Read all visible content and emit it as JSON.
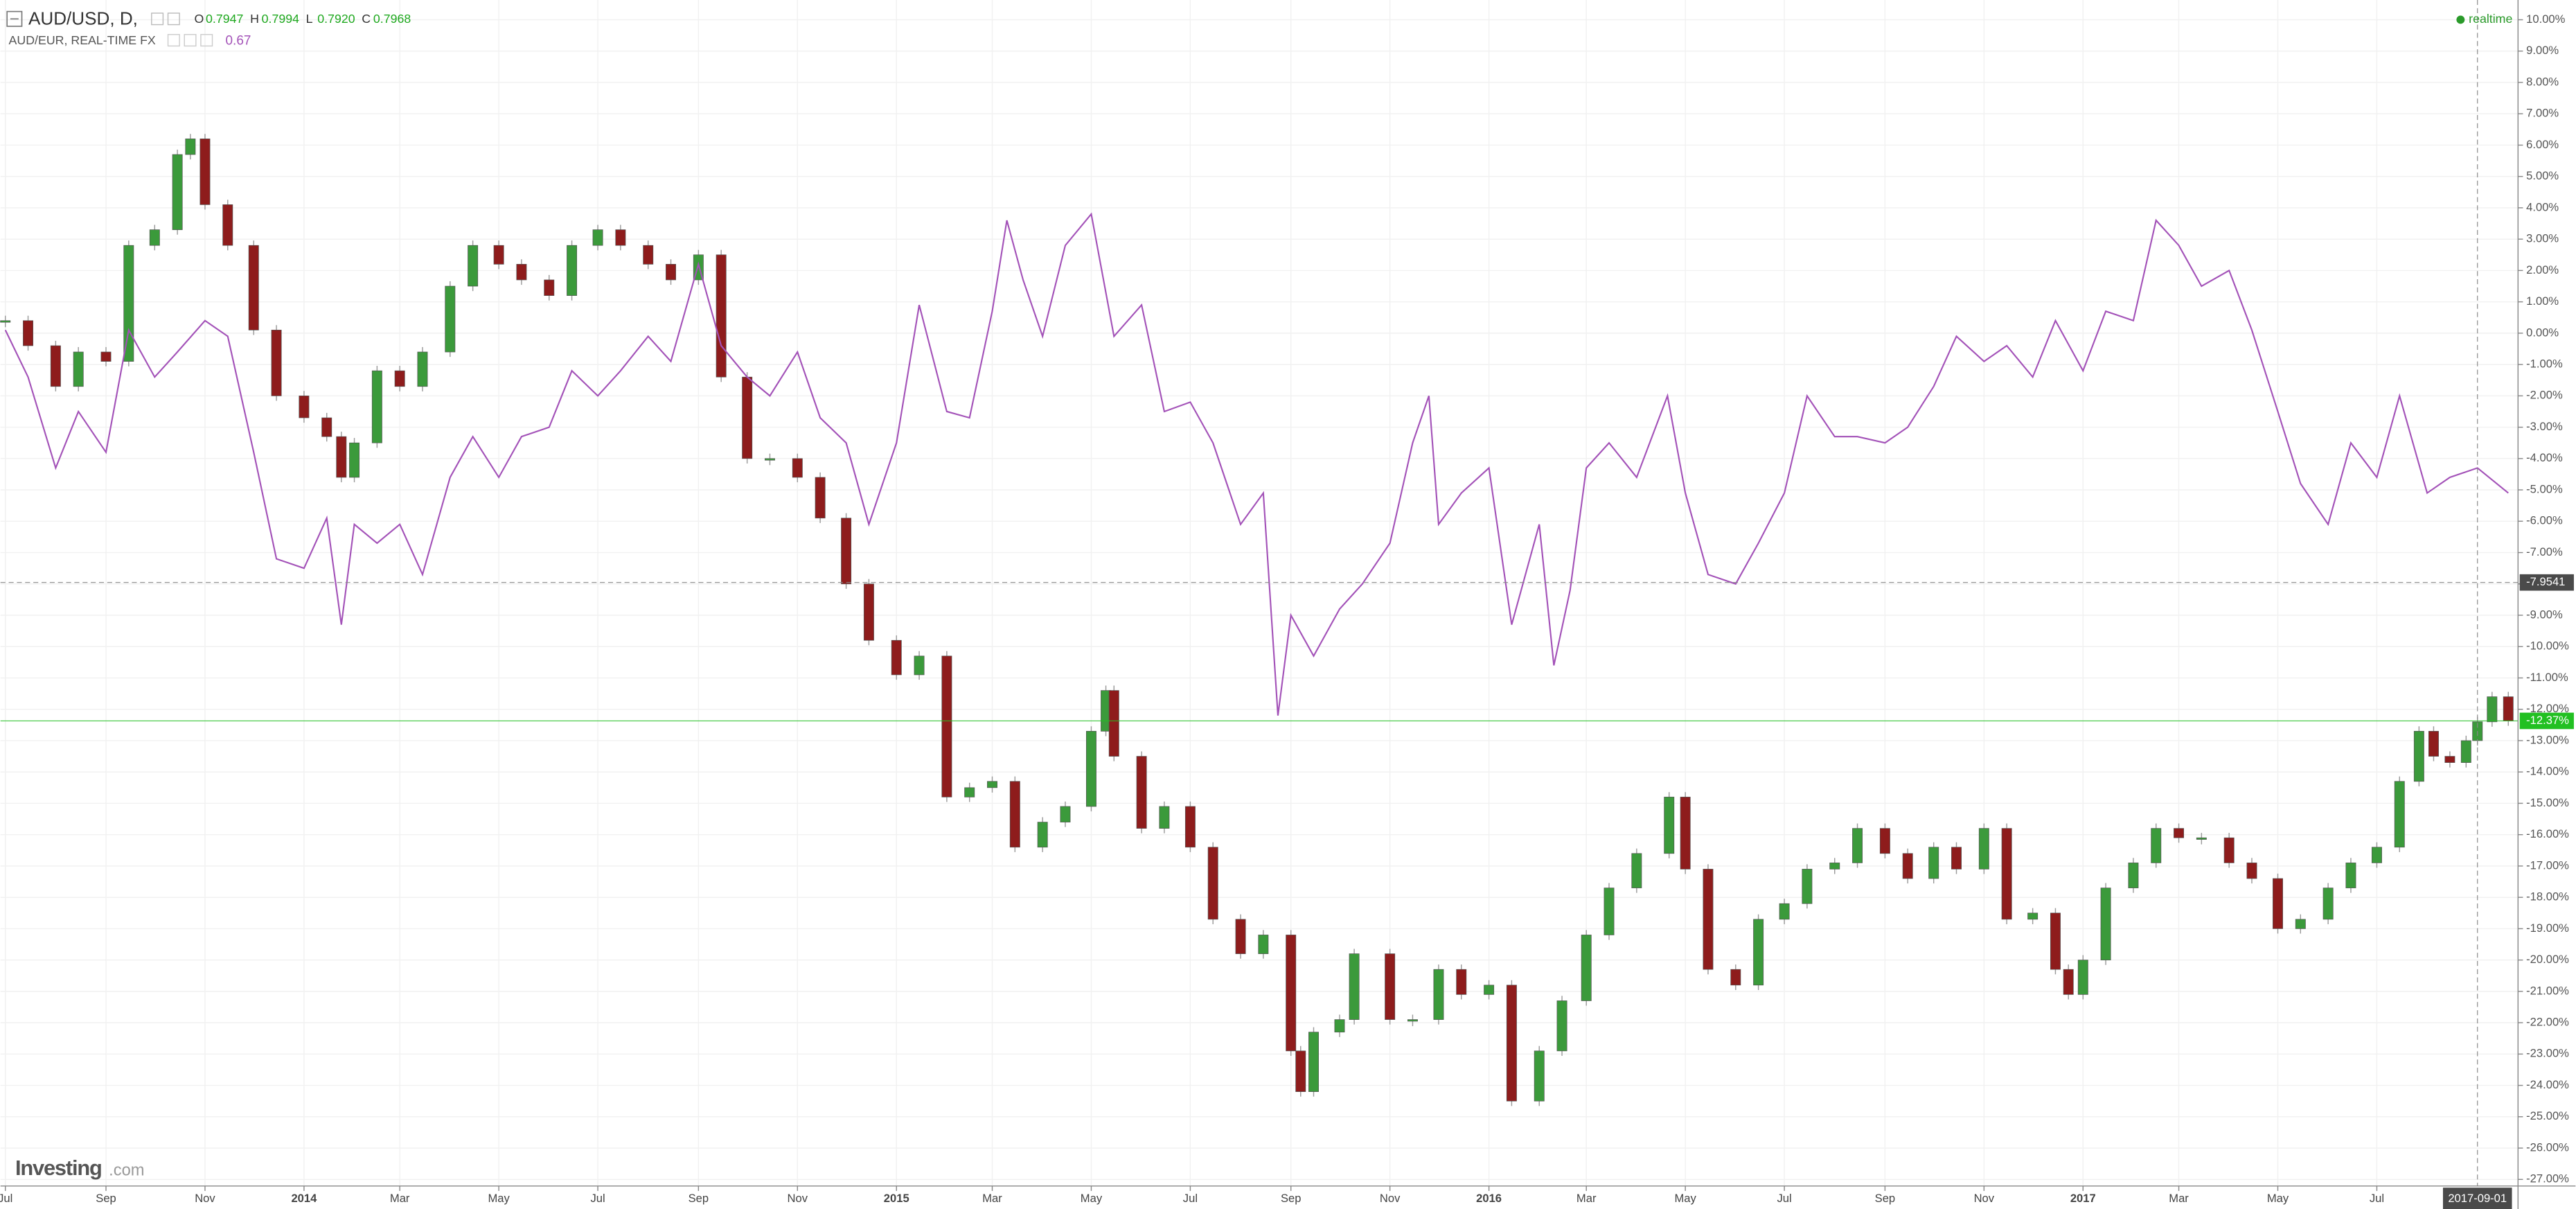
{
  "chart_data": {
    "type": "candlestick",
    "header": {
      "symbol": "AUD/USD, D,",
      "ohlc": [
        {
          "key": "O",
          "value": 0.7947
        },
        {
          "key": "H",
          "value": 0.7994
        },
        {
          "key": "L",
          "value": {
            "value": 0.792,
            "label": "0.7920"
          }
        },
        {
          "key": "C",
          "value": 0.7968
        }
      ],
      "compare_symbol": "AUD/EUR, REAL-TIME FX",
      "compare_value": 0.67,
      "status": "realtime",
      "logo": "Investing",
      "logo_suffix": ".com"
    },
    "series": [
      {
        "name": "AUD/USD",
        "type": "candlestick",
        "up_color": "#3b9a3b",
        "down_color": "#8e1c1c",
        "x": [
          "2013-07-01",
          "2013-07-15",
          "2013-08-01",
          "2013-08-15",
          "2013-09-01",
          "2013-09-15",
          "2013-10-01",
          "2013-10-15",
          "2013-10-23",
          "2013-11-01",
          "2013-11-15",
          "2013-12-01",
          "2013-12-15",
          "2014-01-01",
          "2014-01-15",
          "2014-01-24",
          "2014-02-01",
          "2014-02-15",
          "2014-03-01",
          "2014-03-15",
          "2014-04-01",
          "2014-04-15",
          "2014-05-01",
          "2014-05-15",
          "2014-06-01",
          "2014-06-15",
          "2014-07-01",
          "2014-07-15",
          "2014-08-01",
          "2014-08-15",
          "2014-09-01",
          "2014-09-15",
          "2014-10-01",
          "2014-10-15",
          "2014-11-01",
          "2014-11-15",
          "2014-12-01",
          "2014-12-15",
          "2015-01-01",
          "2015-01-15",
          "2015-02-01",
          "2015-02-15",
          "2015-03-01",
          "2015-03-15",
          "2015-04-01",
          "2015-04-15",
          "2015-05-01",
          "2015-05-10",
          "2015-05-15",
          "2015-06-01",
          "2015-06-15",
          "2015-07-01",
          "2015-07-15",
          "2015-08-01",
          "2015-08-15",
          "2015-09-01",
          "2015-09-07",
          "2015-09-15",
          "2015-10-01",
          "2015-10-10",
          "2015-11-01",
          "2015-11-15",
          "2015-12-01",
          "2015-12-15",
          "2016-01-01",
          "2016-01-15",
          "2016-02-01",
          "2016-02-15",
          "2016-03-01",
          "2016-03-15",
          "2016-04-01",
          "2016-04-21",
          "2016-05-01",
          "2016-05-15",
          "2016-06-01",
          "2016-06-15",
          "2016-07-01",
          "2016-07-15",
          "2016-08-01",
          "2016-08-15",
          "2016-09-01",
          "2016-09-15",
          "2016-10-01",
          "2016-10-15",
          "2016-11-01",
          "2016-11-15",
          "2016-12-01",
          "2016-12-15",
          "2016-12-23",
          "2017-01-01",
          "2017-01-15",
          "2017-02-01",
          "2017-02-15",
          "2017-03-01",
          "2017-03-15",
          "2017-04-01",
          "2017-04-15",
          "2017-05-01",
          "2017-05-15",
          "2017-06-01",
          "2017-06-15",
          "2017-07-01",
          "2017-07-15",
          "2017-07-27",
          "2017-08-05",
          "2017-08-15",
          "2017-08-25",
          "2017-09-01",
          "2017-09-10",
          "2017-09-20"
        ],
        "values": [
          0.4,
          -0.4,
          -1.7,
          -0.6,
          -0.9,
          2.8,
          3.3,
          5.7,
          6.2,
          4.1,
          2.8,
          0.1,
          -2.0,
          -2.7,
          -3.3,
          -4.6,
          -3.5,
          -1.2,
          -1.7,
          -0.6,
          1.5,
          2.8,
          2.2,
          1.7,
          1.2,
          2.8,
          3.3,
          2.8,
          2.2,
          1.7,
          2.5,
          -1.4,
          -4.0,
          -4.0,
          -4.6,
          -5.9,
          -8.0,
          -9.8,
          -10.9,
          -10.3,
          -14.8,
          -14.5,
          -14.3,
          -16.4,
          -15.6,
          -15.1,
          -12.7,
          -11.4,
          -13.5,
          -15.8,
          -15.1,
          -16.4,
          -18.7,
          -19.8,
          -19.2,
          -22.9,
          -24.2,
          -22.3,
          -21.9,
          -19.8,
          -21.9,
          -21.9,
          -20.3,
          -21.1,
          -20.8,
          -24.5,
          -22.9,
          -21.3,
          -19.2,
          -17.7,
          -16.6,
          -14.8,
          -17.1,
          -20.3,
          -20.8,
          -18.7,
          -18.2,
          -17.1,
          -16.9,
          -15.8,
          -16.6,
          -17.4,
          -16.4,
          -17.1,
          -15.8,
          -18.7,
          -18.5,
          -20.3,
          -21.1,
          -20.0,
          -17.7,
          -16.9,
          -15.8,
          -16.1,
          -16.1,
          -16.9,
          -17.4,
          -19.0,
          -18.7,
          -17.7,
          -16.9,
          -16.4,
          -14.3,
          -12.7,
          -13.5,
          -13.7,
          -13.0,
          -12.4,
          -11.6,
          -12.37
        ]
      },
      {
        "name": "AUD/EUR",
        "type": "line",
        "color": "#a352b8",
        "x": [
          "2013-07-01",
          "2013-07-15",
          "2013-08-01",
          "2013-08-15",
          "2013-09-01",
          "2013-09-15",
          "2013-10-01",
          "2013-10-15",
          "2013-11-01",
          "2013-11-15",
          "2013-12-01",
          "2013-12-15",
          "2014-01-01",
          "2014-01-15",
          "2014-01-24",
          "2014-02-01",
          "2014-02-15",
          "2014-03-01",
          "2014-03-15",
          "2014-04-01",
          "2014-04-15",
          "2014-05-01",
          "2014-05-15",
          "2014-06-01",
          "2014-06-15",
          "2014-07-01",
          "2014-07-15",
          "2014-08-01",
          "2014-08-15",
          "2014-09-01",
          "2014-09-15",
          "2014-10-01",
          "2014-10-15",
          "2014-11-01",
          "2014-11-15",
          "2014-12-01",
          "2014-12-15",
          "2015-01-01",
          "2015-01-15",
          "2015-02-01",
          "2015-02-15",
          "2015-03-01",
          "2015-03-10",
          "2015-03-20",
          "2015-04-01",
          "2015-04-15",
          "2015-05-01",
          "2015-05-15",
          "2015-06-01",
          "2015-06-15",
          "2015-07-01",
          "2015-07-15",
          "2015-08-01",
          "2015-08-15",
          "2015-08-24",
          "2015-09-01",
          "2015-09-15",
          "2015-10-01",
          "2015-10-15",
          "2015-11-01",
          "2015-11-15",
          "2015-11-25",
          "2015-12-01",
          "2015-12-15",
          "2016-01-01",
          "2016-01-15",
          "2016-02-01",
          "2016-02-10",
          "2016-02-20",
          "2016-03-01",
          "2016-03-15",
          "2016-04-01",
          "2016-04-20",
          "2016-05-01",
          "2016-05-15",
          "2016-06-01",
          "2016-06-15",
          "2016-07-01",
          "2016-07-15",
          "2016-08-01",
          "2016-08-15",
          "2016-09-01",
          "2016-09-15",
          "2016-10-01",
          "2016-10-15",
          "2016-11-01",
          "2016-11-15",
          "2016-12-01",
          "2016-12-15",
          "2017-01-01",
          "2017-01-15",
          "2017-02-01",
          "2017-02-15",
          "2017-03-01",
          "2017-03-15",
          "2017-04-01",
          "2017-04-15",
          "2017-05-01",
          "2017-05-15",
          "2017-06-01",
          "2017-06-15",
          "2017-07-01",
          "2017-07-15",
          "2017-08-01",
          "2017-08-15",
          "2017-09-01",
          "2017-09-20"
        ],
        "values": [
          0.1,
          -1.4,
          -4.3,
          -2.5,
          -3.8,
          0.1,
          -1.4,
          -0.6,
          0.4,
          -0.1,
          -3.8,
          -7.2,
          -7.5,
          -5.9,
          -9.3,
          -6.1,
          -6.7,
          -6.1,
          -7.7,
          -4.6,
          -3.3,
          -4.6,
          -3.3,
          -3.0,
          -1.2,
          -2.0,
          -1.2,
          -0.1,
          -0.9,
          2.2,
          -0.4,
          -1.4,
          -2.0,
          -0.6,
          -2.7,
          -3.5,
          -6.1,
          -3.5,
          0.9,
          -2.5,
          -2.7,
          0.7,
          3.6,
          1.7,
          -0.1,
          2.8,
          3.8,
          -0.1,
          0.9,
          -2.5,
          -2.2,
          -3.5,
          -6.1,
          -5.1,
          -12.2,
          -9.0,
          -10.3,
          -8.8,
          -8.0,
          -6.7,
          -3.5,
          -2.0,
          -6.1,
          -5.1,
          -4.3,
          -9.3,
          -6.1,
          -10.6,
          -8.2,
          -4.3,
          -3.5,
          -4.6,
          -2.0,
          -5.1,
          -7.7,
          -8.0,
          -6.7,
          -5.1,
          -2.0,
          -3.3,
          -3.3,
          -3.5,
          -3.0,
          -1.7,
          -0.1,
          -0.9,
          -0.4,
          -1.4,
          0.4,
          -1.2,
          0.7,
          0.4,
          3.6,
          2.8,
          1.5,
          2.0,
          0.1,
          -2.5,
          -4.8,
          -6.1,
          -3.5,
          -4.6,
          -2.0,
          -5.1,
          -4.6,
          -4.3,
          -5.1
        ]
      }
    ],
    "last_value": {
      "value": -12.37,
      "label": "-12.37%"
    },
    "last_color": "#22c022",
    "crosshair": {
      "x": "2017-09-01",
      "y": -7.9541
    },
    "xlim": [
      "2013-06-28",
      "2017-09-26"
    ],
    "xticks": [
      {
        "value": "2013-07-01",
        "label": "Jul"
      },
      {
        "value": "2013-09-01",
        "label": "Sep"
      },
      {
        "value": "2013-11-01",
        "label": "Nov"
      },
      {
        "value": "2014-01-01",
        "label": "2014"
      },
      {
        "value": "2014-03-01",
        "label": "Mar"
      },
      {
        "value": "2014-05-01",
        "label": "May"
      },
      {
        "value": "2014-07-01",
        "label": "Jul"
      },
      {
        "value": "2014-09-01",
        "label": "Sep"
      },
      {
        "value": "2014-11-01",
        "label": "Nov"
      },
      {
        "value": "2015-01-01",
        "label": "2015"
      },
      {
        "value": "2015-03-01",
        "label": "Mar"
      },
      {
        "value": "2015-05-01",
        "label": "May"
      },
      {
        "value": "2015-07-01",
        "label": "Jul"
      },
      {
        "value": "2015-09-01",
        "label": "Sep"
      },
      {
        "value": "2015-11-01",
        "label": "Nov"
      },
      {
        "value": "2016-01-01",
        "label": "2016"
      },
      {
        "value": "2016-03-01",
        "label": "Mar"
      },
      {
        "value": "2016-05-01",
        "label": "May"
      },
      {
        "value": "2016-07-01",
        "label": "Jul"
      },
      {
        "value": "2016-09-01",
        "label": "Sep"
      },
      {
        "value": "2016-11-01",
        "label": "Nov"
      },
      {
        "value": "2017-01-01",
        "label": "2017"
      },
      {
        "value": "2017-03-01",
        "label": "Mar"
      },
      {
        "value": "2017-05-01",
        "label": "May"
      },
      {
        "value": "2017-07-01",
        "label": "Jul"
      }
    ],
    "ylim": [
      -27.21,
      10.63
    ],
    "yticks": [
      {
        "value": 10,
        "label": "10.00%"
      },
      {
        "value": 9,
        "label": "9.00%"
      },
      {
        "value": 8,
        "label": "8.00%"
      },
      {
        "value": 7,
        "label": "7.00%"
      },
      {
        "value": 6,
        "label": "6.00%"
      },
      {
        "value": 5,
        "label": "5.00%"
      },
      {
        "value": 4,
        "label": "4.00%"
      },
      {
        "value": 3,
        "label": "3.00%"
      },
      {
        "value": 2,
        "label": "2.00%"
      },
      {
        "value": 1,
        "label": "1.00%"
      },
      {
        "value": 0,
        "label": "0.00%"
      },
      {
        "value": -1,
        "label": "-1.00%"
      },
      {
        "value": -2,
        "label": "-2.00%"
      },
      {
        "value": -3,
        "label": "-3.00%"
      },
      {
        "value": -4,
        "label": "-4.00%"
      },
      {
        "value": -5,
        "label": "-5.00%"
      },
      {
        "value": -6,
        "label": "-6.00%"
      },
      {
        "value": -7,
        "label": "-7.00%"
      },
      {
        "value": -8,
        "label": "-8.00%"
      },
      {
        "value": -9,
        "label": "-9.00%"
      },
      {
        "value": -10,
        "label": "-10.00%"
      },
      {
        "value": -11,
        "label": "-11.00%"
      },
      {
        "value": -12,
        "label": "-12.00%"
      },
      {
        "value": -13,
        "label": "-13.00%"
      },
      {
        "value": -14,
        "label": "-14.00%"
      },
      {
        "value": -15,
        "label": "-15.00%"
      },
      {
        "value": -16,
        "label": "-16.00%"
      },
      {
        "value": -17,
        "label": "-17.00%"
      },
      {
        "value": -18,
        "label": "-18.00%"
      },
      {
        "value": -19,
        "label": "-19.00%"
      },
      {
        "value": -20,
        "label": "-20.00%"
      },
      {
        "value": -21,
        "label": "-21.00%"
      },
      {
        "value": -22,
        "label": "-22.00%"
      },
      {
        "value": -23,
        "label": "-23.00%"
      },
      {
        "value": -24,
        "label": "-24.00%"
      },
      {
        "value": -25,
        "label": "-25.00%"
      },
      {
        "value": -26,
        "label": "-26.00%"
      },
      {
        "value": -27,
        "label": "-27.00%"
      }
    ],
    "grid": true
  }
}
